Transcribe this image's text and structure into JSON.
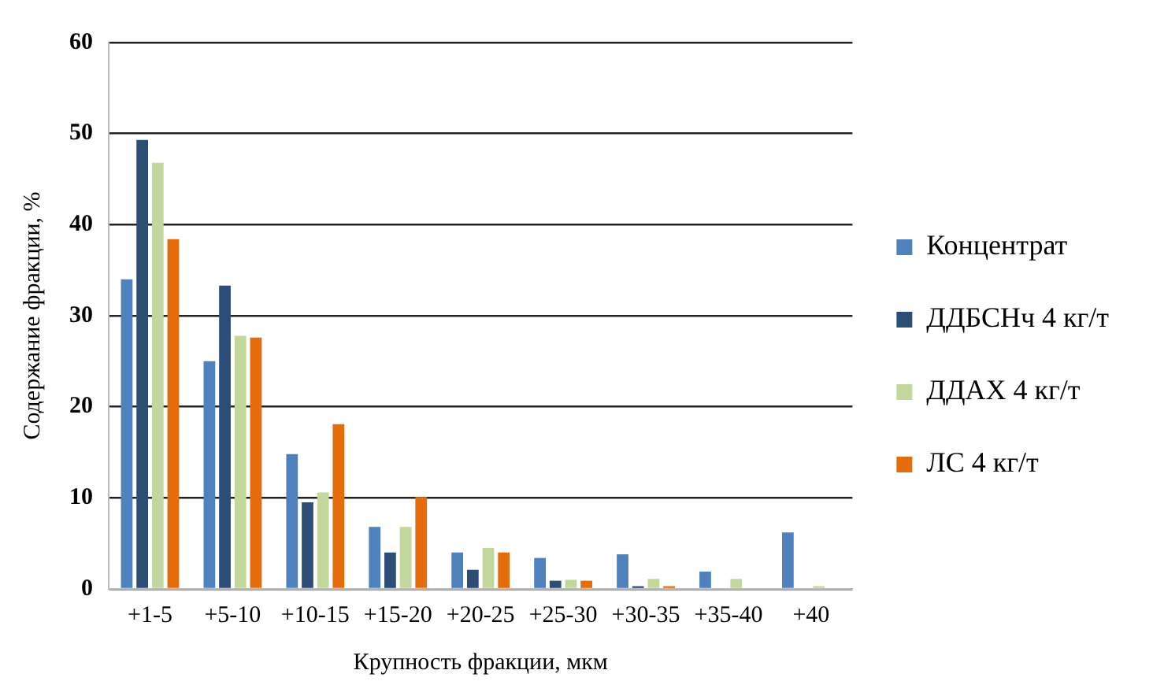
{
  "chart_data": {
    "type": "bar",
    "xlabel": "Крупность фракции, мкм",
    "ylabel": "Содержание фракции, %",
    "categories": [
      "+1-5",
      "+5-10",
      "+10-15",
      "+15-20",
      "+20-25",
      "+25-30",
      "+30-35",
      "+35-40",
      "+40"
    ],
    "series": [
      {
        "name": "Концентрат",
        "color": "#4f81bd",
        "values": [
          34,
          25,
          14.8,
          6.8,
          4,
          3.4,
          3.8,
          1.9,
          6.2
        ]
      },
      {
        "name": "ДДБСНч 4 кг/т",
        "color": "#2c4d75",
        "values": [
          49.3,
          33.3,
          9.5,
          4,
          2.1,
          0.9,
          0.3,
          0,
          0
        ]
      },
      {
        "name": "ДДАХ 4 кг/т",
        "color": "#c3d69b",
        "values": [
          46.8,
          27.8,
          10.6,
          6.8,
          4.5,
          1,
          1.1,
          1.1,
          0.3
        ]
      },
      {
        "name": "ЛС 4 кг/т",
        "color": "#e46c0a",
        "values": [
          38.4,
          27.6,
          18.1,
          10.1,
          4,
          0.9,
          0.3,
          0,
          0
        ]
      }
    ],
    "ylim": [
      0,
      60
    ],
    "yticks": [
      0,
      10,
      20,
      30,
      40,
      50,
      60
    ],
    "grid": "y",
    "legend": "right"
  }
}
